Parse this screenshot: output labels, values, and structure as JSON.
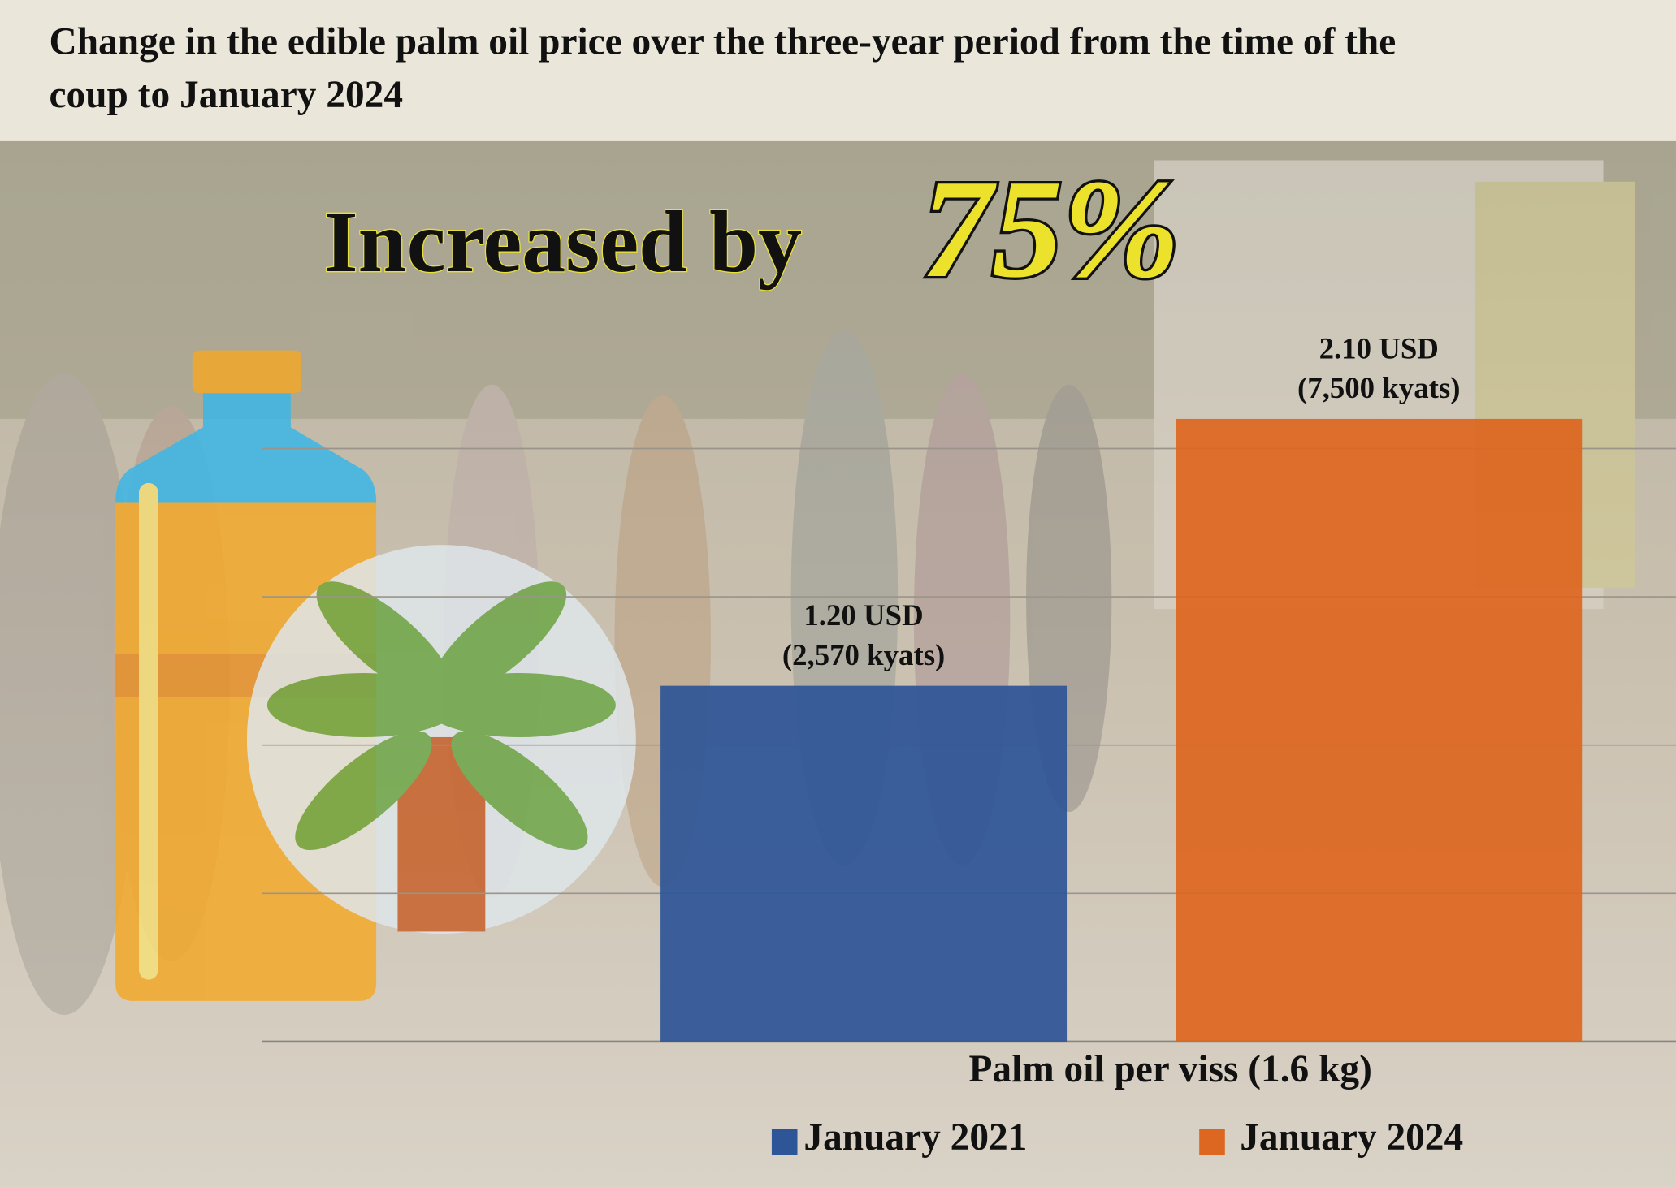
{
  "chart_data": {
    "type": "bar",
    "title": "Change in the edible palm oil price over the three-year period from the time of the coup to January 2024",
    "annotation": {
      "text": "Increased by",
      "label": "75%"
    },
    "categories": [
      "Palm oil per viss (1.6 kg)"
    ],
    "series": [
      {
        "name": "January 2021",
        "color": "#2e5597",
        "values": [
          1.2
        ],
        "value_labels": [
          "1.20 USD"
        ],
        "kyats_labels": [
          "(2,570 kyats)"
        ]
      },
      {
        "name": "January 2024",
        "color": "#dd6620",
        "values": [
          2.1
        ],
        "value_labels": [
          "2.10 USD"
        ],
        "kyats_labels": [
          "(7,500 kyats)"
        ]
      }
    ],
    "ylim": [
      0,
      2.5
    ],
    "yticks": [
      0,
      0.5,
      1,
      1.5,
      2
    ],
    "grid": true,
    "legend": "bottom"
  }
}
